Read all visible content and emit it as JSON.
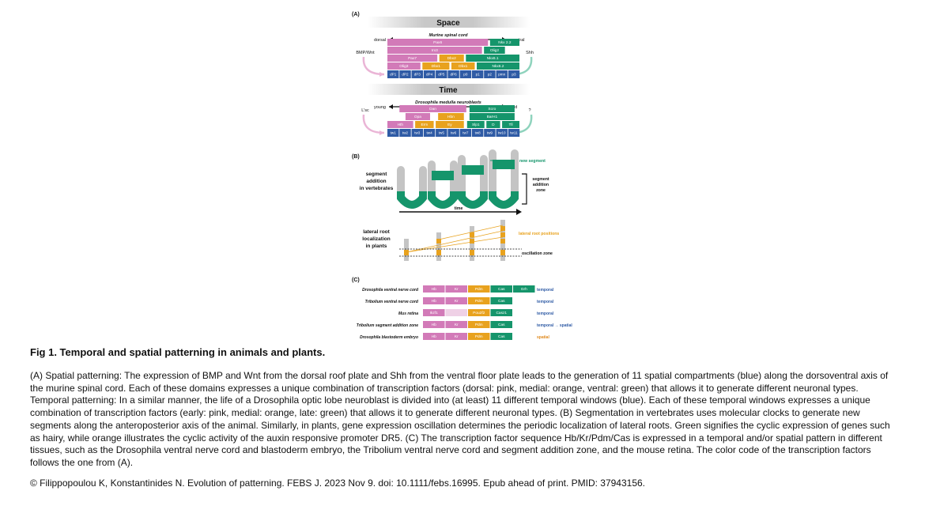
{
  "caption": {
    "title": "Fig 1. Temporal and spatial patterning in animals and plants.",
    "body": "(A) Spatial patterning: The expression of BMP and Wnt from the dorsal roof plate and Shh from the ventral floor plate leads to the generation of 11 spatial compartments (blue) along the dorsoventral axis of the murine spinal cord. Each of these domains expresses a unique combination of transcription factors (dorsal: pink, medial: orange, ventral: green) that allows it to generate different neuronal types. Temporal patterning: In a similar manner, the life of a Drosophila optic lobe neuroblast is divided into (at least) 11 different temporal windows (blue). Each of these temporal windows expresses a unique combination of transcription factors (early: pink, medial: orange, late: green) that allows it to generate different neuronal types. (B) Segmentation in vertebrates uses molecular clocks to generate new segments along the anteroposterior axis of the animal. Similarly, in plants, gene expression oscillation determines the periodic localization of lateral roots. Green signifies the cyclic expression of genes such as hairy, while orange illustrates the cyclic activity of the auxin responsive promoter DR5. (C) The transcription factor sequence Hb/Kr/Pdm/Cas is expressed in a temporal and/or spatial pattern in different tissues, such as the Drosophila ventral nerve cord and blastoderm embryo, the Tribolium ventral nerve cord and segment addition zone, and the mouse retina. The color code of the transcription factors follows the one from (A).",
    "citation": "© Filippopoulou K, Konstantinides N. Evolution of patterning. FEBS J. 2023 Nov 9. doi: 10.1111/febs.16995. Epub ahead of print. PMID: 37943156."
  },
  "colors": {
    "pink": "#d27ab8",
    "orange": "#e8a21e",
    "green": "#15956b",
    "blue": "#2f5ba5",
    "gray": "#c4c4c4",
    "lightpink": "#eab5d6",
    "lightgreen": "#8fd3bd"
  },
  "panelA": {
    "label": "(A)",
    "space": {
      "header": "Space",
      "subtitle": "Murine spinal cord",
      "left_axis": "dorsal",
      "right_axis": "ventral",
      "left_signal": "BMP/Wnt",
      "right_signal": "Shh",
      "domains": [
        "dP1",
        "dP2",
        "dP3",
        "dP4",
        "dP5",
        "dP6",
        "p0",
        "p1",
        "p2",
        "pmn",
        "p3"
      ],
      "tf_rows": [
        [
          {
            "label": "Pax6",
            "color": "pink"
          },
          {
            "label": "Nkx 2.2",
            "color": "green"
          }
        ],
        [
          {
            "label": "Irx3",
            "color": "pink"
          },
          {
            "label": "Olig2",
            "color": "green"
          }
        ],
        [
          {
            "label": "Pax7",
            "color": "pink"
          },
          {
            "label": "Dbx2",
            "color": "orange"
          },
          {
            "label": "Nkx6.1",
            "color": "green"
          }
        ],
        [
          {
            "label": "Olig3",
            "color": "pink"
          },
          {
            "label": "Dbx1",
            "color": "orange"
          },
          {
            "label": "Dbx1",
            "color": "orange"
          },
          {
            "label": "Nkx6.2",
            "color": "green"
          }
        ]
      ]
    },
    "time": {
      "header": "Time",
      "subtitle": "Drosophila medulla neuroblasts",
      "left_axis": "young",
      "right_axis": "old",
      "left_signal": "L'sc",
      "right_signal": "?",
      "windows": [
        "tw1",
        "tw2",
        "tw3",
        "tw4",
        "tw5",
        "tw6",
        "tw7",
        "tw8",
        "tw9",
        "tw10",
        "tw11"
      ],
      "tf_rows": [
        [
          {
            "label": "Dan",
            "color": "pink"
          },
          {
            "label": "Scro",
            "color": "green"
          }
        ],
        [
          {
            "label": "Opa",
            "color": "pink"
          },
          {
            "label": "Hbn",
            "color": "orange"
          },
          {
            "label": "BarH1",
            "color": "green"
          }
        ],
        [
          {
            "label": "Hth",
            "color": "pink"
          },
          {
            "label": "Erm",
            "color": "orange"
          },
          {
            "label": "Ey",
            "color": "orange"
          },
          {
            "label": "Slp1",
            "color": "green"
          },
          {
            "label": "D",
            "color": "green"
          },
          {
            "label": "Tll",
            "color": "green"
          }
        ]
      ]
    }
  },
  "panelB": {
    "label": "(B)",
    "vertebrate_label": [
      "segment",
      "addition",
      "in vertebrates"
    ],
    "new_segment": "new segment",
    "zone_label": [
      "segment",
      "addition",
      "zone"
    ],
    "time": "time",
    "plant_label": [
      "lateral root",
      "localization",
      "in plants"
    ],
    "lateral_root_positions": "lateral root positions",
    "oscillation_zone": "oscillation zone"
  },
  "panelC": {
    "label": "(C)",
    "rows": [
      {
        "tissue": "Drosophila ventral nerve cord",
        "tfs": [
          "Hb",
          "Kr",
          "Pdm",
          "Cas",
          "Grh"
        ],
        "mode": "temporal",
        "mode_color": "#2f5ba5"
      },
      {
        "tissue": "Tribolium ventral nerve cord",
        "tfs": [
          "Hb",
          "Kr",
          "Pdm",
          "Cas"
        ],
        "mode": "temporal",
        "mode_color": "#2f5ba5"
      },
      {
        "tissue": "Mus retina",
        "tfs": [
          "Ikzf1",
          "",
          "Pou2f2",
          "Casz1"
        ],
        "mode": "temporal",
        "mode_color": "#2f5ba5"
      },
      {
        "tissue": "Tribolium segment addition zone",
        "tfs": [
          "Hb",
          "Kr",
          "Pdm",
          "Cas"
        ],
        "mode": "temporal → spatial",
        "mode_color": "#2f5ba5"
      },
      {
        "tissue": "Drosophila blastoderm embryo",
        "tfs": [
          "Hb",
          "Kr",
          "Pdm",
          "Cas"
        ],
        "mode": "spatial",
        "mode_color": "#e08a1e"
      }
    ]
  }
}
